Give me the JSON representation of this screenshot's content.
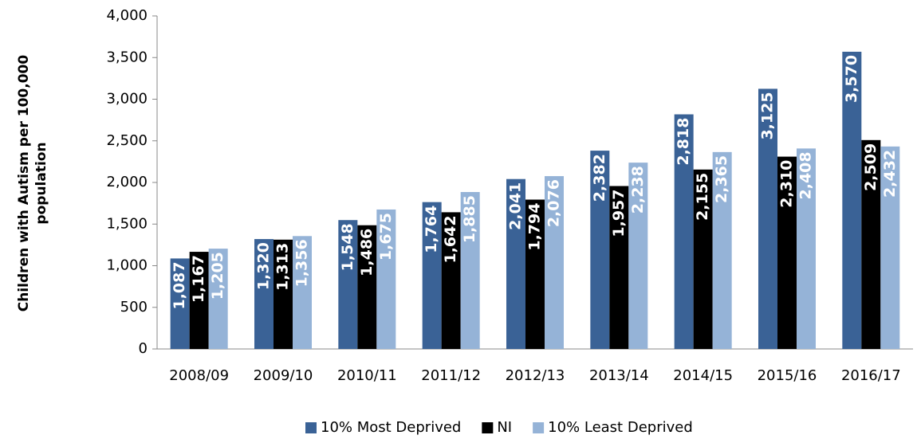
{
  "chart_data": {
    "type": "bar",
    "ylabel": "Children with Autism per 100,000 population",
    "categories": [
      "2008/09",
      "2009/10",
      "2010/11",
      "2011/12",
      "2012/13",
      "2013/14",
      "2014/15",
      "2015/16",
      "2016/17"
    ],
    "series": [
      {
        "name": "10% Most Deprived",
        "color": "#3a6296",
        "values": [
          1087,
          1320,
          1548,
          1764,
          2041,
          2382,
          2818,
          3125,
          3570
        ],
        "value_labels": [
          "1,087",
          "1,320",
          "1,548",
          "1,764",
          "2,041",
          "2,382",
          "2,818",
          "3,125",
          "3,570"
        ]
      },
      {
        "name": "NI",
        "color": "#000000",
        "values": [
          1167,
          1313,
          1486,
          1642,
          1794,
          1957,
          2155,
          2310,
          2509
        ],
        "value_labels": [
          "1,167",
          "1,313",
          "1,486",
          "1,642",
          "1,794",
          "1,957",
          "2,155",
          "2,310",
          "2,509"
        ]
      },
      {
        "name": "10% Least Deprived",
        "color": "#95b3d7",
        "values": [
          1205,
          1356,
          1675,
          1885,
          2076,
          2238,
          2365,
          2408,
          2432
        ],
        "value_labels": [
          "1,205",
          "1,356",
          "1,675",
          "1,885",
          "2,076",
          "2,238",
          "2,365",
          "2,408",
          "2,432"
        ]
      }
    ],
    "ylim": [
      0,
      4000
    ],
    "yticks": [
      0,
      500,
      {
        "value": 1000,
        "label": "1,000"
      },
      {
        "value": 1500,
        "label": "1,500"
      },
      {
        "value": 2000,
        "label": "2,000"
      },
      {
        "value": 2500,
        "label": "2,500"
      },
      {
        "value": 3000,
        "label": "3,000"
      },
      {
        "value": 3500,
        "label": "3,500"
      },
      {
        "value": 4000,
        "label": "4,000"
      }
    ],
    "legend": "bottom"
  }
}
